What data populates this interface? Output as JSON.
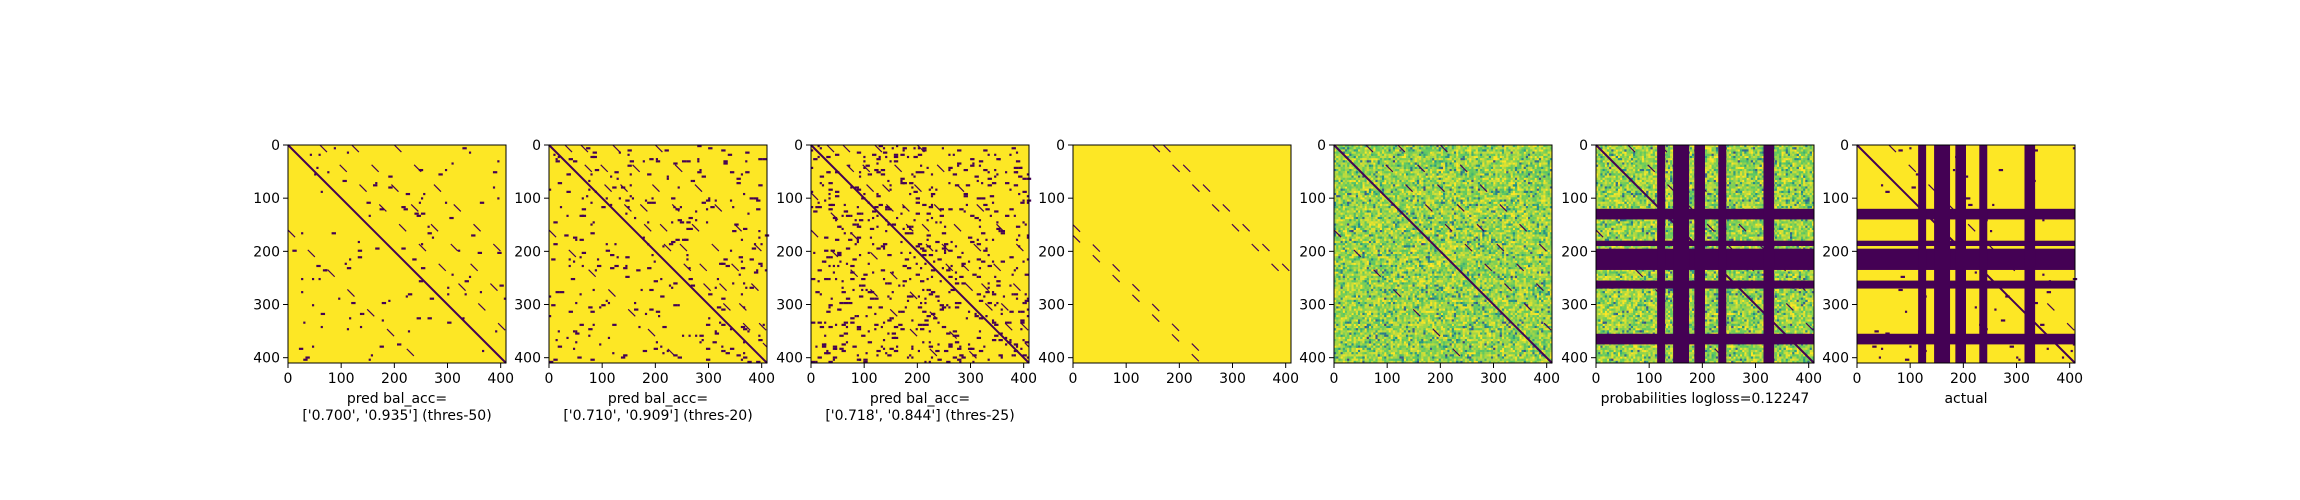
{
  "figure": {
    "background": "#ffffff",
    "colormap": "viridis",
    "colors": {
      "low": "#440154",
      "high": "#fde725",
      "mid_teal": "#21918c",
      "mid_green": "#5ec962",
      "mid_blue": "#3b528b"
    }
  },
  "chart_data": [
    {
      "type": "heatmap",
      "panel": 1,
      "content": "binary prediction matrix",
      "label_lines": [
        "pred bal_acc=",
        "['0.700', '0.935'] (thres-50)"
      ],
      "x_ticks": [
        0,
        100,
        200,
        300,
        400
      ],
      "y_ticks": [
        0,
        100,
        200,
        300,
        400
      ],
      "xlim": [
        0,
        410
      ],
      "ylim": [
        410,
        0
      ],
      "value_range": [
        0,
        1
      ],
      "grid": false,
      "seed": 11,
      "density": 0.012,
      "diagonals": [
        0,
        60,
        120,
        -160,
        200
      ]
    },
    {
      "type": "heatmap",
      "panel": 2,
      "content": "binary prediction matrix",
      "label_lines": [
        "pred bal_acc=",
        "['0.710', '0.909'] (thres-20)"
      ],
      "x_ticks": [
        0,
        100,
        200,
        300,
        400
      ],
      "y_ticks": [
        0,
        100,
        200,
        300,
        400
      ],
      "xlim": [
        0,
        410
      ],
      "ylim": [
        410,
        0
      ],
      "value_range": [
        0,
        1
      ],
      "grid": false,
      "seed": 23,
      "density": 0.028,
      "diagonals": [
        0,
        60,
        120,
        -160,
        200,
        30
      ]
    },
    {
      "type": "heatmap",
      "panel": 3,
      "content": "binary prediction matrix",
      "label_lines": [
        "pred bal_acc=",
        "['0.718', '0.844'] (thres-25)"
      ],
      "x_ticks": [
        0,
        100,
        200,
        300,
        400
      ],
      "y_ticks": [
        0,
        100,
        200,
        300,
        400
      ],
      "xlim": [
        0,
        410
      ],
      "ylim": [
        410,
        0
      ],
      "value_range": [
        0,
        1
      ],
      "grid": false,
      "seed": 37,
      "density": 0.06,
      "diagonals": [
        0,
        30,
        60,
        120,
        -160,
        200,
        -90
      ]
    },
    {
      "type": "heatmap",
      "panel": 4,
      "content": "sparse binary matrix",
      "label_lines": [],
      "x_ticks": [
        0,
        100,
        200,
        300,
        400
      ],
      "y_ticks": [
        0,
        100,
        200,
        300,
        400
      ],
      "xlim": [
        0,
        410
      ],
      "ylim": [
        410,
        0
      ],
      "value_range": [
        0,
        1
      ],
      "grid": false,
      "seed": 41,
      "density": 0.0,
      "diagonals": [
        150,
        170,
        -150,
        -170
      ]
    },
    {
      "type": "heatmap",
      "panel": 5,
      "content": "continuous probability matrix",
      "label_lines": [],
      "x_ticks": [
        0,
        100,
        200,
        300,
        400
      ],
      "y_ticks": [
        0,
        100,
        200,
        300,
        400
      ],
      "xlim": [
        0,
        410
      ],
      "ylim": [
        410,
        0
      ],
      "value_range": [
        0,
        1
      ],
      "grid": false,
      "seed": 53,
      "density": 0.09,
      "diagonals": [
        0,
        60,
        120,
        -160,
        200
      ]
    },
    {
      "type": "heatmap",
      "panel": 6,
      "content": "probabilities with masked bands",
      "label_lines": [
        "probabilities logloss=0.12247"
      ],
      "x_ticks": [
        0,
        100,
        200,
        300,
        400
      ],
      "y_ticks": [
        0,
        100,
        200,
        300,
        400
      ],
      "xlim": [
        0,
        410
      ],
      "ylim": [
        410,
        0
      ],
      "value_range": [
        0,
        1
      ],
      "grid": false,
      "seed": 61,
      "density": 0.09,
      "diagonals": [
        0,
        60,
        120,
        -160
      ],
      "bands": [
        [
          115,
          130
        ],
        [
          145,
          175
        ],
        [
          185,
          205
        ],
        [
          230,
          245
        ],
        [
          315,
          335
        ]
      ],
      "hbands": [
        [
          120,
          140
        ],
        [
          180,
          190
        ],
        [
          195,
          235
        ],
        [
          255,
          270
        ],
        [
          355,
          375
        ]
      ]
    },
    {
      "type": "heatmap",
      "panel": 7,
      "content": "actual binary matrix with bands",
      "label_lines": [
        "actual"
      ],
      "x_ticks": [
        0,
        100,
        200,
        300,
        400
      ],
      "y_ticks": [
        0,
        100,
        200,
        300,
        400
      ],
      "xlim": [
        0,
        410
      ],
      "ylim": [
        410,
        0
      ],
      "value_range": [
        0,
        1
      ],
      "grid": false,
      "seed": 71,
      "density": 0.008,
      "diagonals": [
        0,
        60
      ],
      "bands": [
        [
          115,
          130
        ],
        [
          145,
          175
        ],
        [
          185,
          205
        ],
        [
          230,
          245
        ],
        [
          315,
          335
        ]
      ],
      "hbands": [
        [
          120,
          140
        ],
        [
          180,
          190
        ],
        [
          195,
          235
        ],
        [
          255,
          270
        ],
        [
          355,
          375
        ]
      ]
    }
  ]
}
